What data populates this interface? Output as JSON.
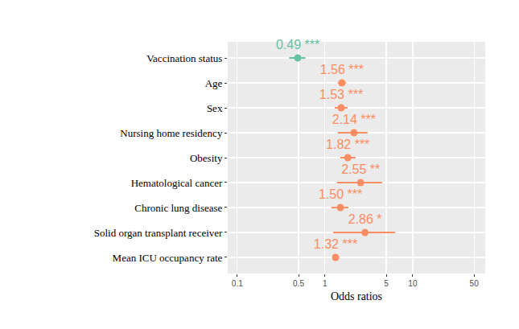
{
  "chart_data": {
    "type": "scatter",
    "orientation": "horizontal",
    "x_label": "Odds ratios",
    "categories": [
      "Vaccination status",
      "Age",
      "Sex",
      "Nursing home residency",
      "Obesity",
      "Hematological cancer",
      "Chronic lung disease",
      "Solid organ transplant receiver",
      "Mean ICU occupancy rate"
    ],
    "values": [
      0.49,
      1.56,
      1.53,
      2.14,
      1.82,
      2.55,
      1.5,
      2.86,
      1.32
    ],
    "value_labels": [
      "0.49 ***",
      "1.56 ***",
      "1.53 ***",
      "2.14 ***",
      "1.82 ***",
      "2.55 **",
      "1.50 ***",
      "2.86 *",
      "1.32 ***"
    ],
    "ci_lower": [
      0.39,
      1.4,
      1.29,
      1.4,
      1.5,
      1.37,
      1.18,
      1.24,
      1.22
    ],
    "ci_upper": [
      0.6,
      1.74,
      1.81,
      3.06,
      2.23,
      4.48,
      1.85,
      6.3,
      1.43
    ],
    "colors": [
      "#66c2a5",
      "#fc8d62",
      "#fc8d62",
      "#fc8d62",
      "#fc8d62",
      "#fc8d62",
      "#fc8d62",
      "#fc8d62",
      "#fc8d62"
    ],
    "xlim": [
      0.078,
      67
    ],
    "xticks": [
      0.1,
      0.5,
      1,
      5,
      10,
      50
    ],
    "log": "x",
    "grid": true,
    "data_labels": true,
    "marker": "circle"
  }
}
